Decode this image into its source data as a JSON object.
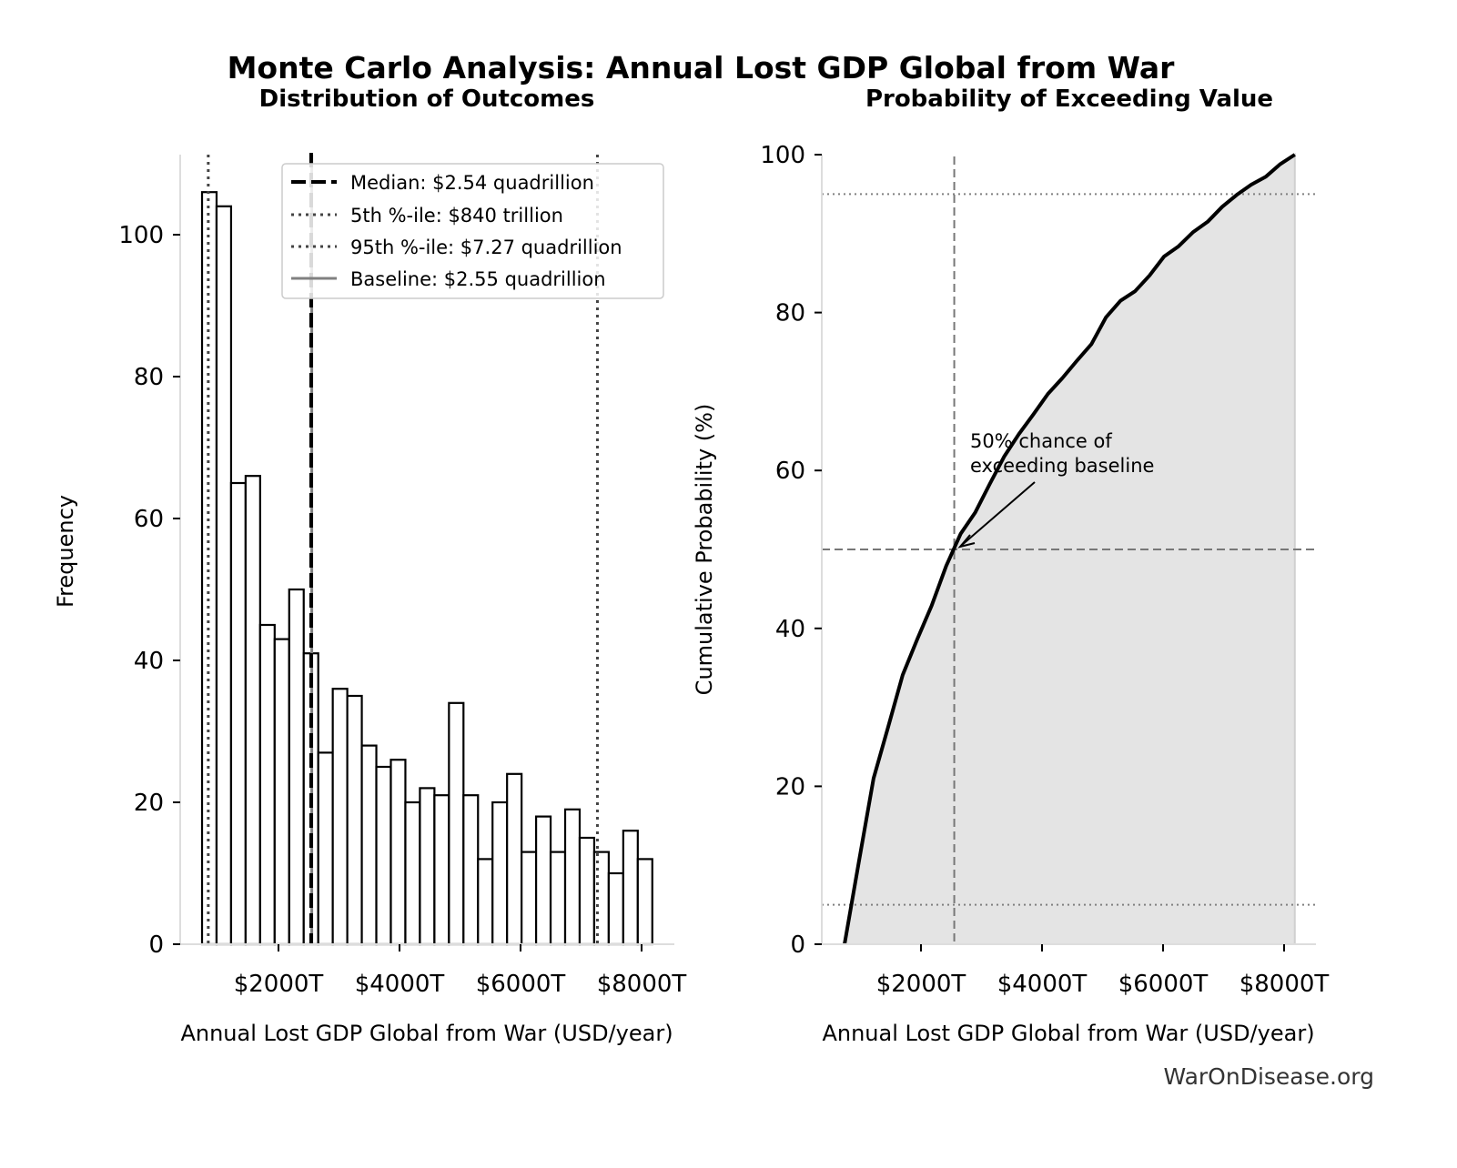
{
  "title": "Monte Carlo Analysis: Annual Lost GDP Global from War",
  "watermark": "WarOnDisease.org",
  "chart_data": [
    {
      "type": "bar",
      "title": "Distribution of Outcomes",
      "xlabel": "Annual Lost GDP Global from War (USD/year)",
      "ylabel": "Frequency",
      "bin_start": 737,
      "bin_width": 240,
      "values": [
        106,
        104,
        65,
        66,
        45,
        43,
        50,
        41,
        27,
        36,
        35,
        28,
        25,
        26,
        20,
        22,
        21,
        34,
        21,
        12,
        20,
        24,
        13,
        18,
        13,
        19,
        15,
        13,
        10,
        16,
        12
      ],
      "xticks": [
        2000,
        4000,
        6000,
        8000
      ],
      "xtick_labels": [
        "$2000T",
        "$4000T",
        "$6000T",
        "$8000T"
      ],
      "yticks": [
        0,
        20,
        40,
        60,
        80,
        100
      ],
      "ytick_labels": [
        "0",
        "20",
        "40",
        "60",
        "80",
        "100"
      ],
      "ylim": [
        0,
        111
      ],
      "vlines": {
        "median": 2540,
        "p5": 840,
        "p95": 7270,
        "baseline": 2550
      },
      "legend_position": "top-right",
      "legend": [
        "Median: $2.54 quadrillion",
        "5th %-ile: $840 trillion",
        "95th %-ile: $7.27 quadrillion",
        "Baseline: $2.55 quadrillion"
      ]
    },
    {
      "type": "line",
      "title": "Probability of Exceeding Value",
      "xlabel": "Annual Lost GDP Global from War (USD/year)",
      "ylabel": "Cumulative Probability (%)",
      "x": [
        737,
        977,
        1217,
        1457,
        1697,
        1937,
        2177,
        2417,
        2657,
        2897,
        3137,
        3377,
        3617,
        3857,
        4097,
        4337,
        4577,
        4817,
        5057,
        5297,
        5537,
        5777,
        6017,
        6257,
        6497,
        6737,
        6977,
        7217,
        7457,
        7697,
        7937,
        8177
      ],
      "y": [
        0,
        10.6,
        21.0,
        27.5,
        34.1,
        38.6,
        42.9,
        47.9,
        52.0,
        54.7,
        58.3,
        61.8,
        64.6,
        67.1,
        69.7,
        71.7,
        73.9,
        76.0,
        79.4,
        81.5,
        82.7,
        84.7,
        87.1,
        88.4,
        90.2,
        91.5,
        93.4,
        94.9,
        96.2,
        97.2,
        98.8,
        100
      ],
      "xticks": [
        2000,
        4000,
        6000,
        8000
      ],
      "xtick_labels": [
        "$2000T",
        "$4000T",
        "$6000T",
        "$8000T"
      ],
      "yticks": [
        0,
        20,
        40,
        60,
        80,
        100
      ],
      "ytick_labels": [
        "0",
        "20",
        "40",
        "60",
        "80",
        "100"
      ],
      "ylim": [
        0,
        100
      ],
      "hlines": {
        "p5": 5,
        "p50": 50,
        "p95": 95
      },
      "vline_baseline": 2550,
      "annotation": {
        "line1": "50% chance of",
        "line2": "exceeding baseline",
        "x": 2550,
        "y": 50
      }
    }
  ]
}
